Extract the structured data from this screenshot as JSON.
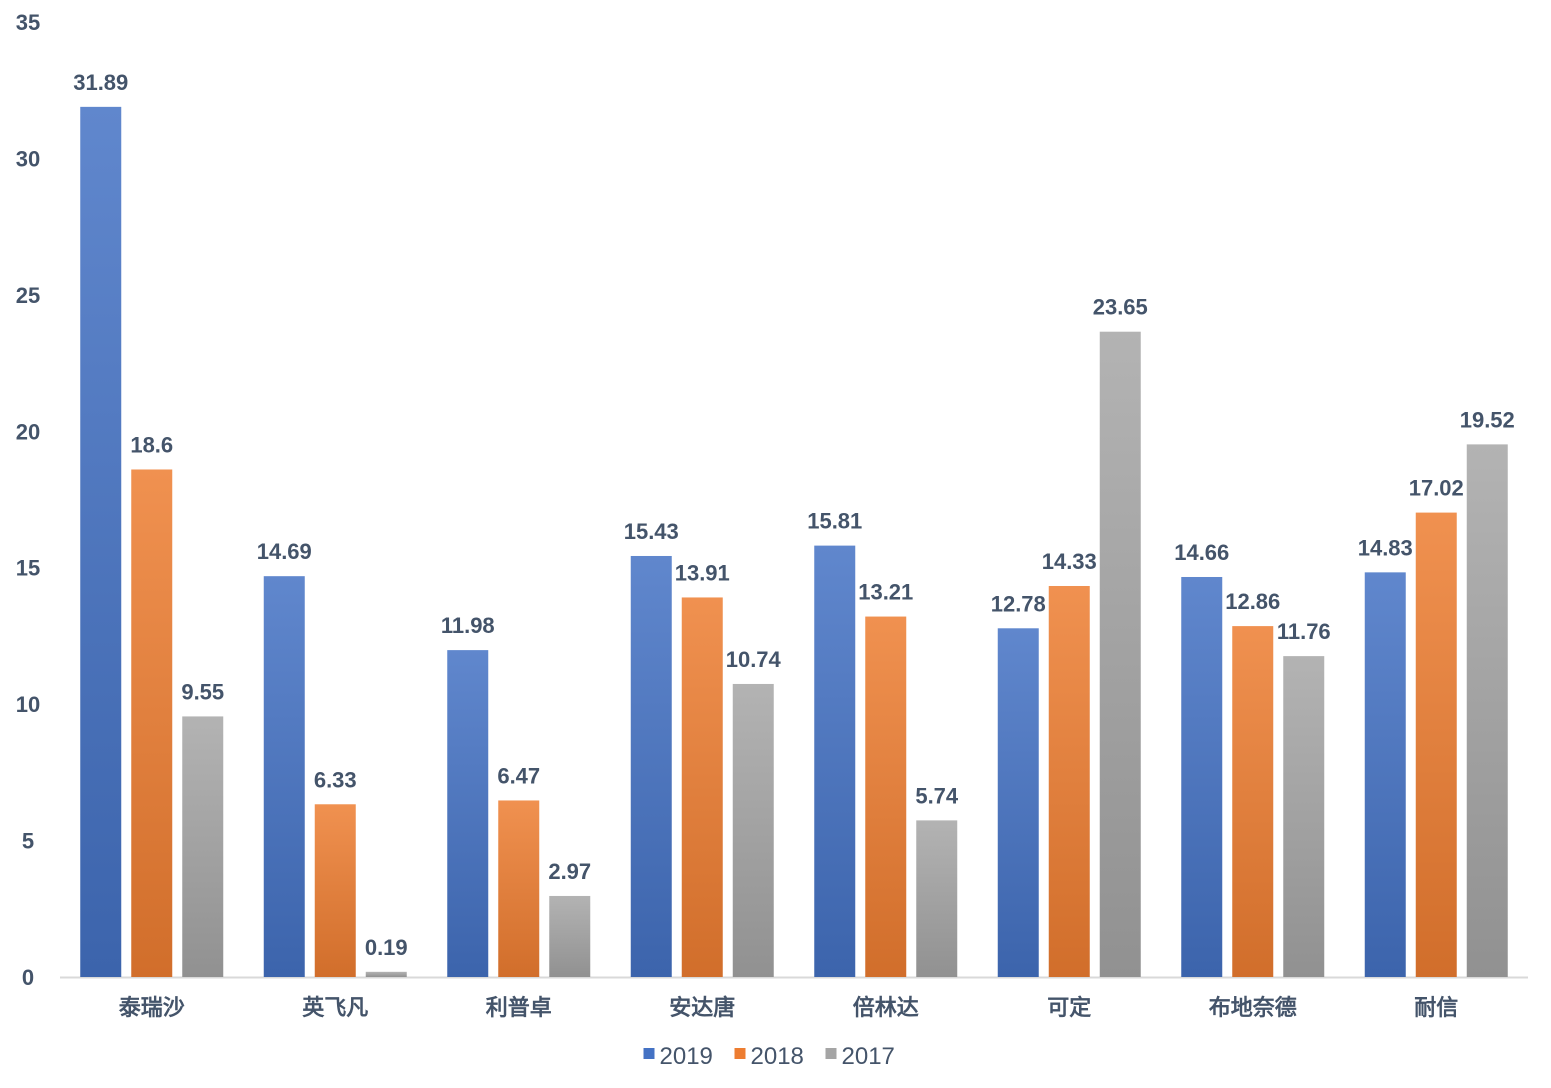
{
  "chart_data": {
    "type": "bar",
    "title": "",
    "xlabel": "",
    "ylabel": "",
    "ylim": [
      0,
      35
    ],
    "yticks": [
      0,
      5,
      10,
      15,
      20,
      25,
      30,
      35
    ],
    "grid": false,
    "legend_position": "bottom",
    "categories": [
      "泰瑞沙",
      "英飞凡",
      "利普卓",
      "安达唐",
      "倍林达",
      "可定",
      "布地奈德",
      "耐信"
    ],
    "series": [
      {
        "name": "2019",
        "color": "#4472c4",
        "values": [
          31.89,
          14.69,
          11.98,
          15.43,
          15.81,
          12.78,
          14.66,
          14.83
        ]
      },
      {
        "name": "2018",
        "color": "#ed7d31",
        "values": [
          18.6,
          6.33,
          6.47,
          13.91,
          13.21,
          14.33,
          12.86,
          17.02
        ]
      },
      {
        "name": "2017",
        "color": "#a5a5a5",
        "values": [
          9.55,
          0.19,
          2.97,
          10.74,
          5.74,
          23.65,
          11.76,
          19.52
        ]
      }
    ],
    "data_labels": [
      [
        "31.89",
        "14.69",
        "11.98",
        "15.43",
        "15.81",
        "12.78",
        "14.66",
        "14.83"
      ],
      [
        "18.6",
        "6.33",
        "6.47",
        "13.91",
        "13.21",
        "14.33",
        "12.86",
        "17.02"
      ],
      [
        "9.55",
        "0.19",
        "2.97",
        "10.74",
        "5.74",
        "23.65",
        "11.76",
        "19.52"
      ]
    ]
  }
}
